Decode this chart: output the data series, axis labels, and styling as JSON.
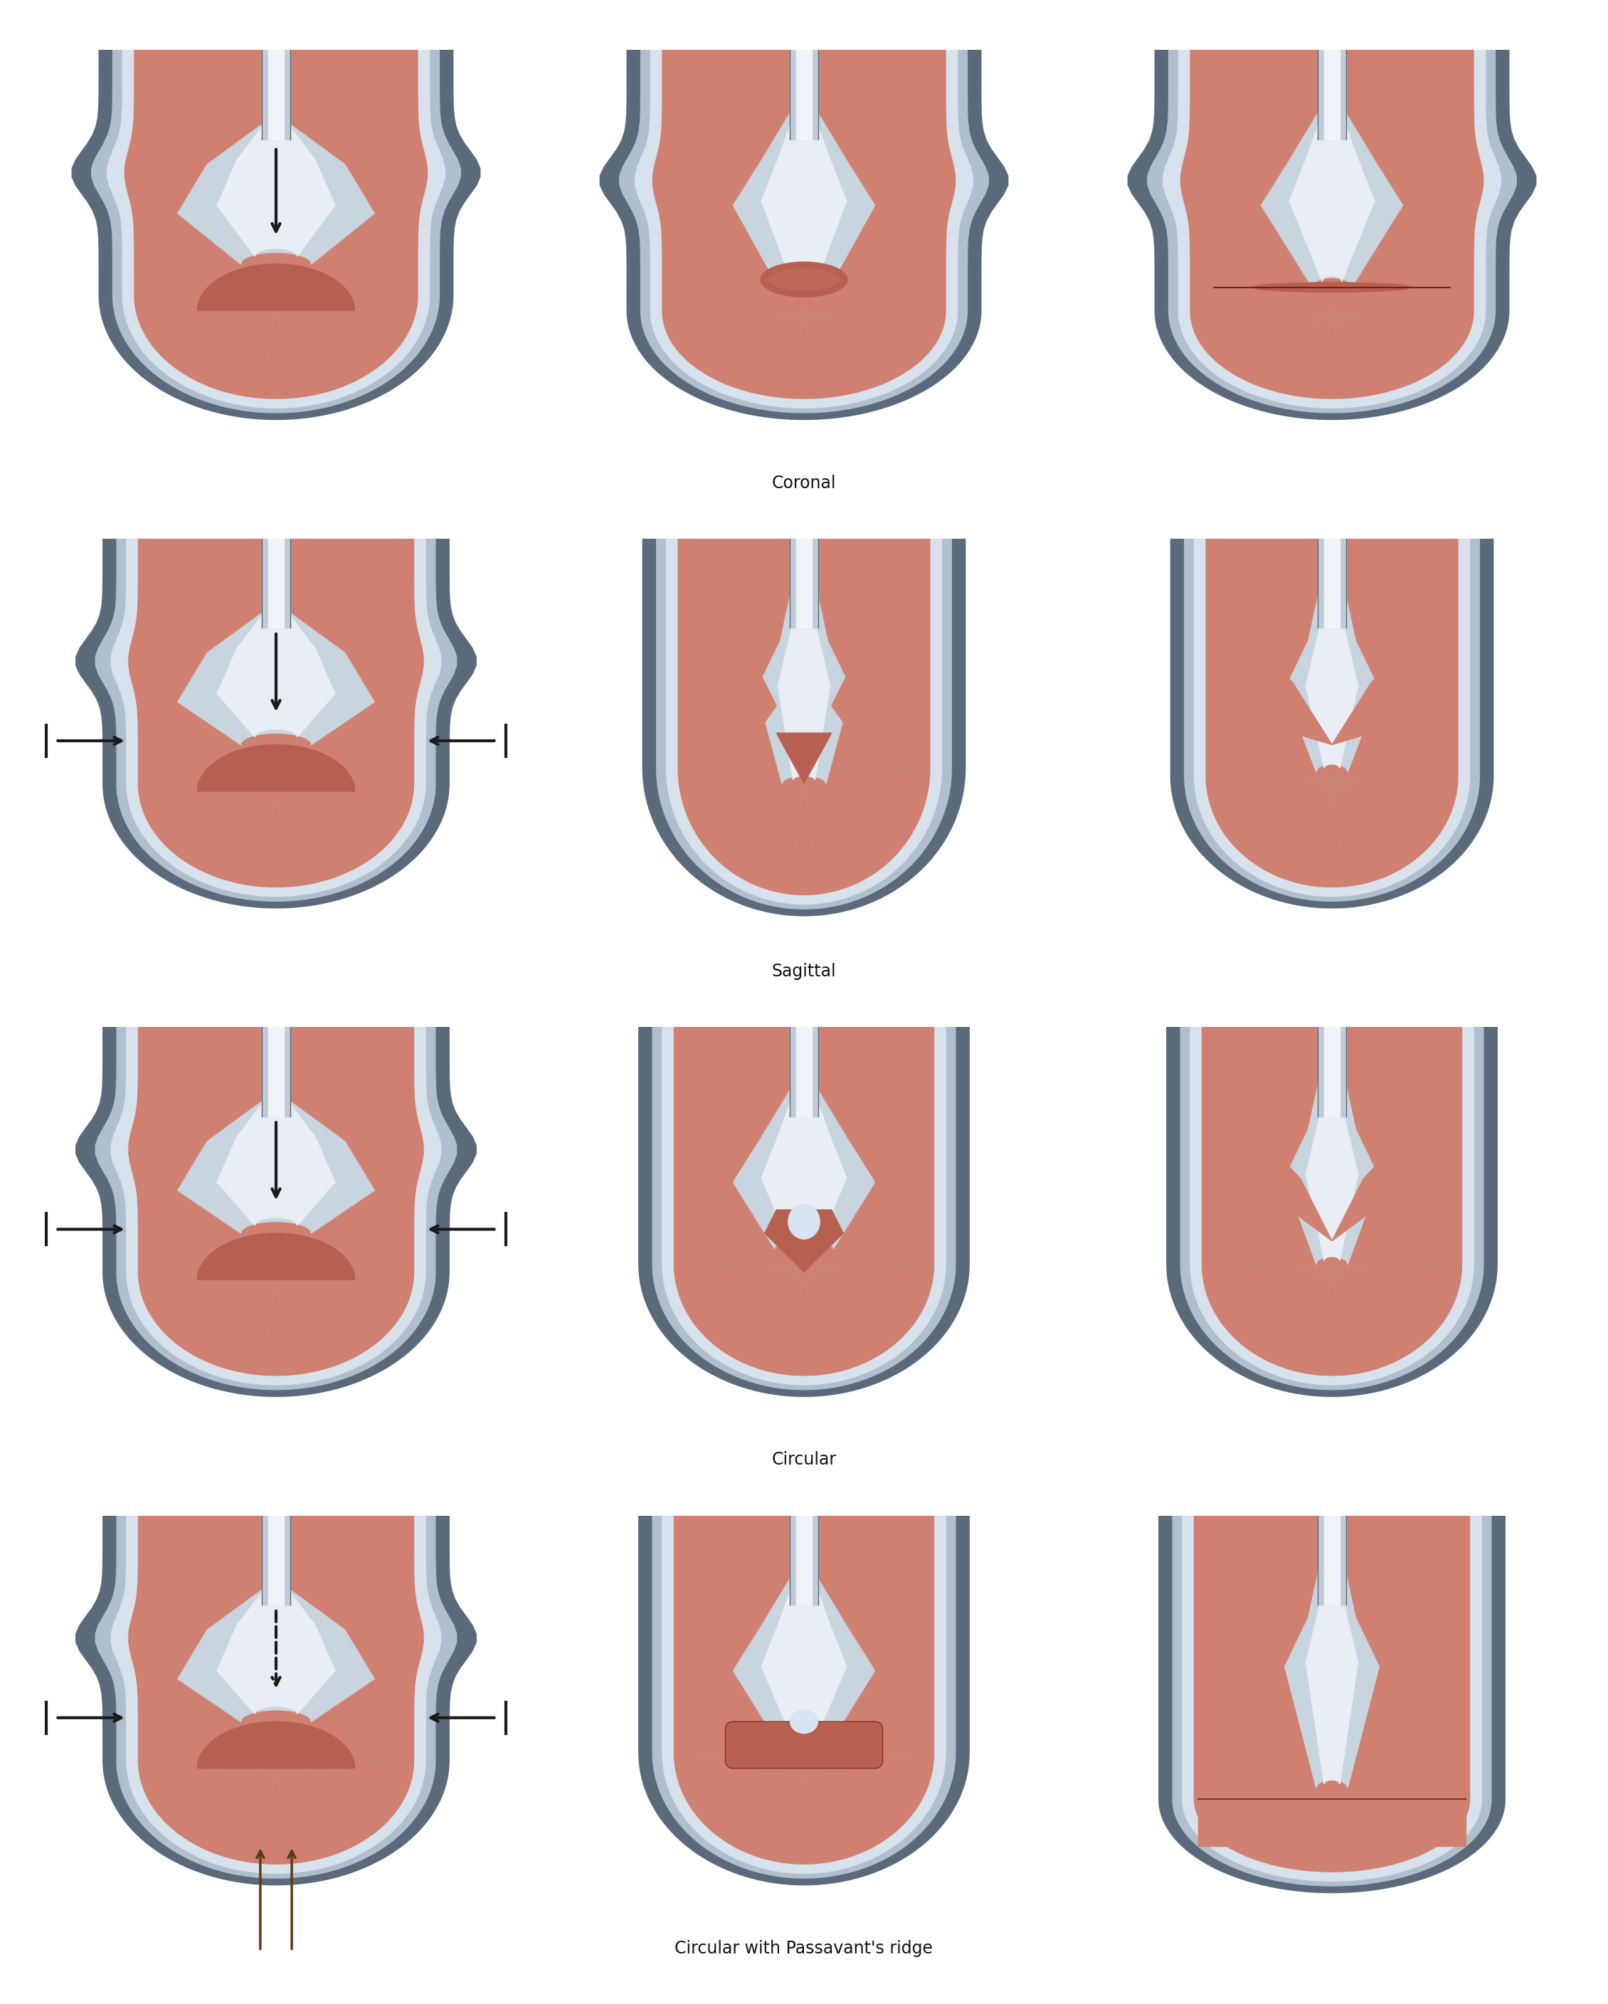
{
  "rows": 4,
  "cols": 3,
  "row_labels": [
    "Coronal",
    "Sagittal",
    "Circular",
    "Circular with Passavant's ridge"
  ],
  "label_col": 1,
  "bg_color": "#ffffff",
  "c_outer_dark": "#5a6a7a",
  "c_outer_mid": "#b0bece",
  "c_outer_light": "#d8e2ec",
  "c_tissue": "#d08070",
  "c_tissue_light": "#e8b0a0",
  "c_tissue_dark": "#b86050",
  "c_velum_light": "#e8eef4",
  "c_velum_mid": "#c8d4de",
  "c_velum_dark": "#a0b0be",
  "c_tube_outer": "#c0ccd8",
  "c_tube_inner": "#f0f4f8",
  "c_gap_fill": "#d8e4f0",
  "c_black": "#1a1a1a",
  "c_brown": "#5c3a18",
  "label_fontsize": 17,
  "label_font": "DejaVu Sans"
}
